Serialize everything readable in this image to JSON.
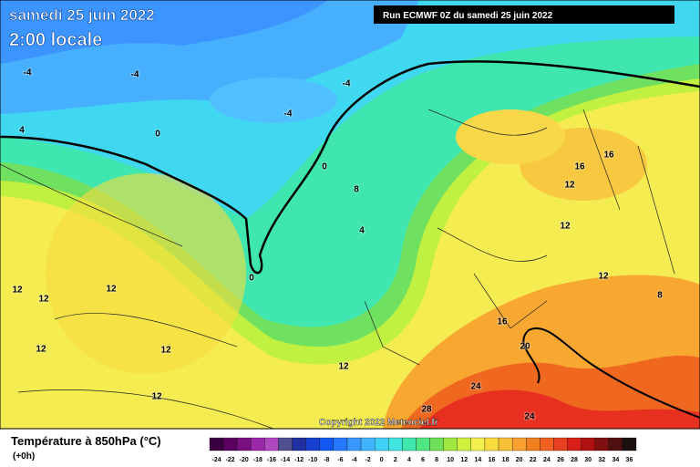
{
  "header": {
    "title": "samedi 25 juin 2022",
    "subtitle": "2:00 locale",
    "run": "Run ECMWF 0Z du samedi 25 juin 2022"
  },
  "map": {
    "copyright": "Copyright 2022 Meteociel.fr",
    "contour_labels": [
      -4,
      -4,
      -4,
      -4,
      4,
      0,
      0,
      0,
      8,
      4,
      16,
      16,
      12,
      12,
      12,
      12,
      12,
      12,
      12,
      12,
      12,
      12,
      8,
      16,
      20,
      24,
      24,
      28
    ]
  },
  "legend": {
    "title": "Température à 850hPa (°C)",
    "step": "(+0h)",
    "ticks": [
      -24,
      -22,
      -20,
      -18,
      -16,
      -14,
      -12,
      -10,
      -8,
      -6,
      -4,
      -2,
      0,
      2,
      4,
      6,
      8,
      10,
      12,
      14,
      16,
      18,
      20,
      22,
      24,
      26,
      28,
      30,
      32,
      34,
      36
    ],
    "colors": [
      "#3a0040",
      "#5a0060",
      "#7a1080",
      "#9a28a8",
      "#b048c0",
      "#505090",
      "#2030a0",
      "#1840d0",
      "#1058f0",
      "#2878ff",
      "#3898ff",
      "#40b4ff",
      "#40d0f8",
      "#40e4e0",
      "#40e8b0",
      "#50e680",
      "#70e058",
      "#a0e840",
      "#d0f040",
      "#f4f050",
      "#f8dc40",
      "#f8c038",
      "#f8a030",
      "#f08020",
      "#f06020",
      "#e84020",
      "#d82018",
      "#b01010",
      "#801010",
      "#501010",
      "#1c1010"
    ]
  }
}
